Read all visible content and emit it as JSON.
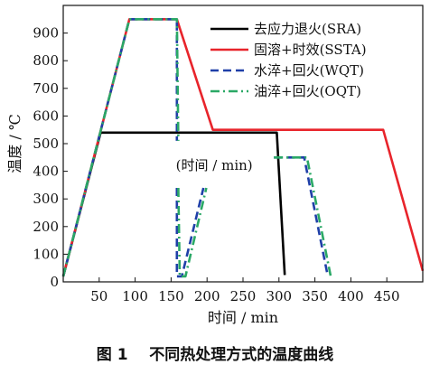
{
  "caption": "图 1    不同热处理方式的温度曲线",
  "chart_data": {
    "type": "line",
    "xlabel": "时间 / min",
    "ylabel": "温度 / ℃",
    "xlim": [
      0,
      500
    ],
    "ylim": [
      0,
      1000
    ],
    "xticks": [
      50,
      100,
      150,
      200,
      250,
      300,
      350,
      400,
      450
    ],
    "yticks": [
      0,
      100,
      200,
      300,
      400,
      500,
      600,
      700,
      800,
      900
    ],
    "grid": false,
    "legend_position": "top-right",
    "annotations": [
      {
        "text": "(时间 / min)",
        "x": 210,
        "y": 405
      }
    ],
    "series": [
      {
        "name": "去应力退火(SRA)",
        "color": "#000000",
        "dash": "solid",
        "segments": [
          [
            [
              0,
              20
            ],
            [
              52,
              540
            ],
            [
              297,
              540
            ],
            [
              308,
              25
            ]
          ]
        ]
      },
      {
        "name": "固溶+时效(SSTA)",
        "color": "#e8242b",
        "dash": "solid",
        "segments": [
          [
            [
              0,
              20
            ],
            [
              92,
              950
            ],
            [
              158,
              950
            ],
            [
              208,
              550
            ],
            [
              445,
              550
            ],
            [
              500,
              40
            ]
          ]
        ]
      },
      {
        "name": "水淬+回火(WQT)",
        "color": "#1f3fa8",
        "dash": "dash",
        "segments": [
          [
            [
              0,
              20
            ],
            [
              92,
              950
            ],
            [
              158,
              950
            ],
            [
              158,
              510
            ]
          ],
          [
            [
              158,
              340
            ],
            [
              158,
              20
            ],
            [
              165,
              20
            ],
            [
              195,
              340
            ]
          ],
          [
            [
              293,
              450
            ],
            [
              335,
              450
            ],
            [
              368,
              20
            ]
          ]
        ]
      },
      {
        "name": "油淬+回火(OQT)",
        "color": "#2aa866",
        "dash": "dashdot",
        "segments": [
          [
            [
              0,
              20
            ],
            [
              92,
              950
            ],
            [
              158,
              950
            ],
            [
              160,
              510
            ]
          ],
          [
            [
              160,
              340
            ],
            [
              162,
              20
            ],
            [
              170,
              20
            ],
            [
              199,
              340
            ]
          ],
          [
            [
              293,
              450
            ],
            [
              339,
              450
            ],
            [
              372,
              20
            ]
          ]
        ]
      }
    ]
  }
}
